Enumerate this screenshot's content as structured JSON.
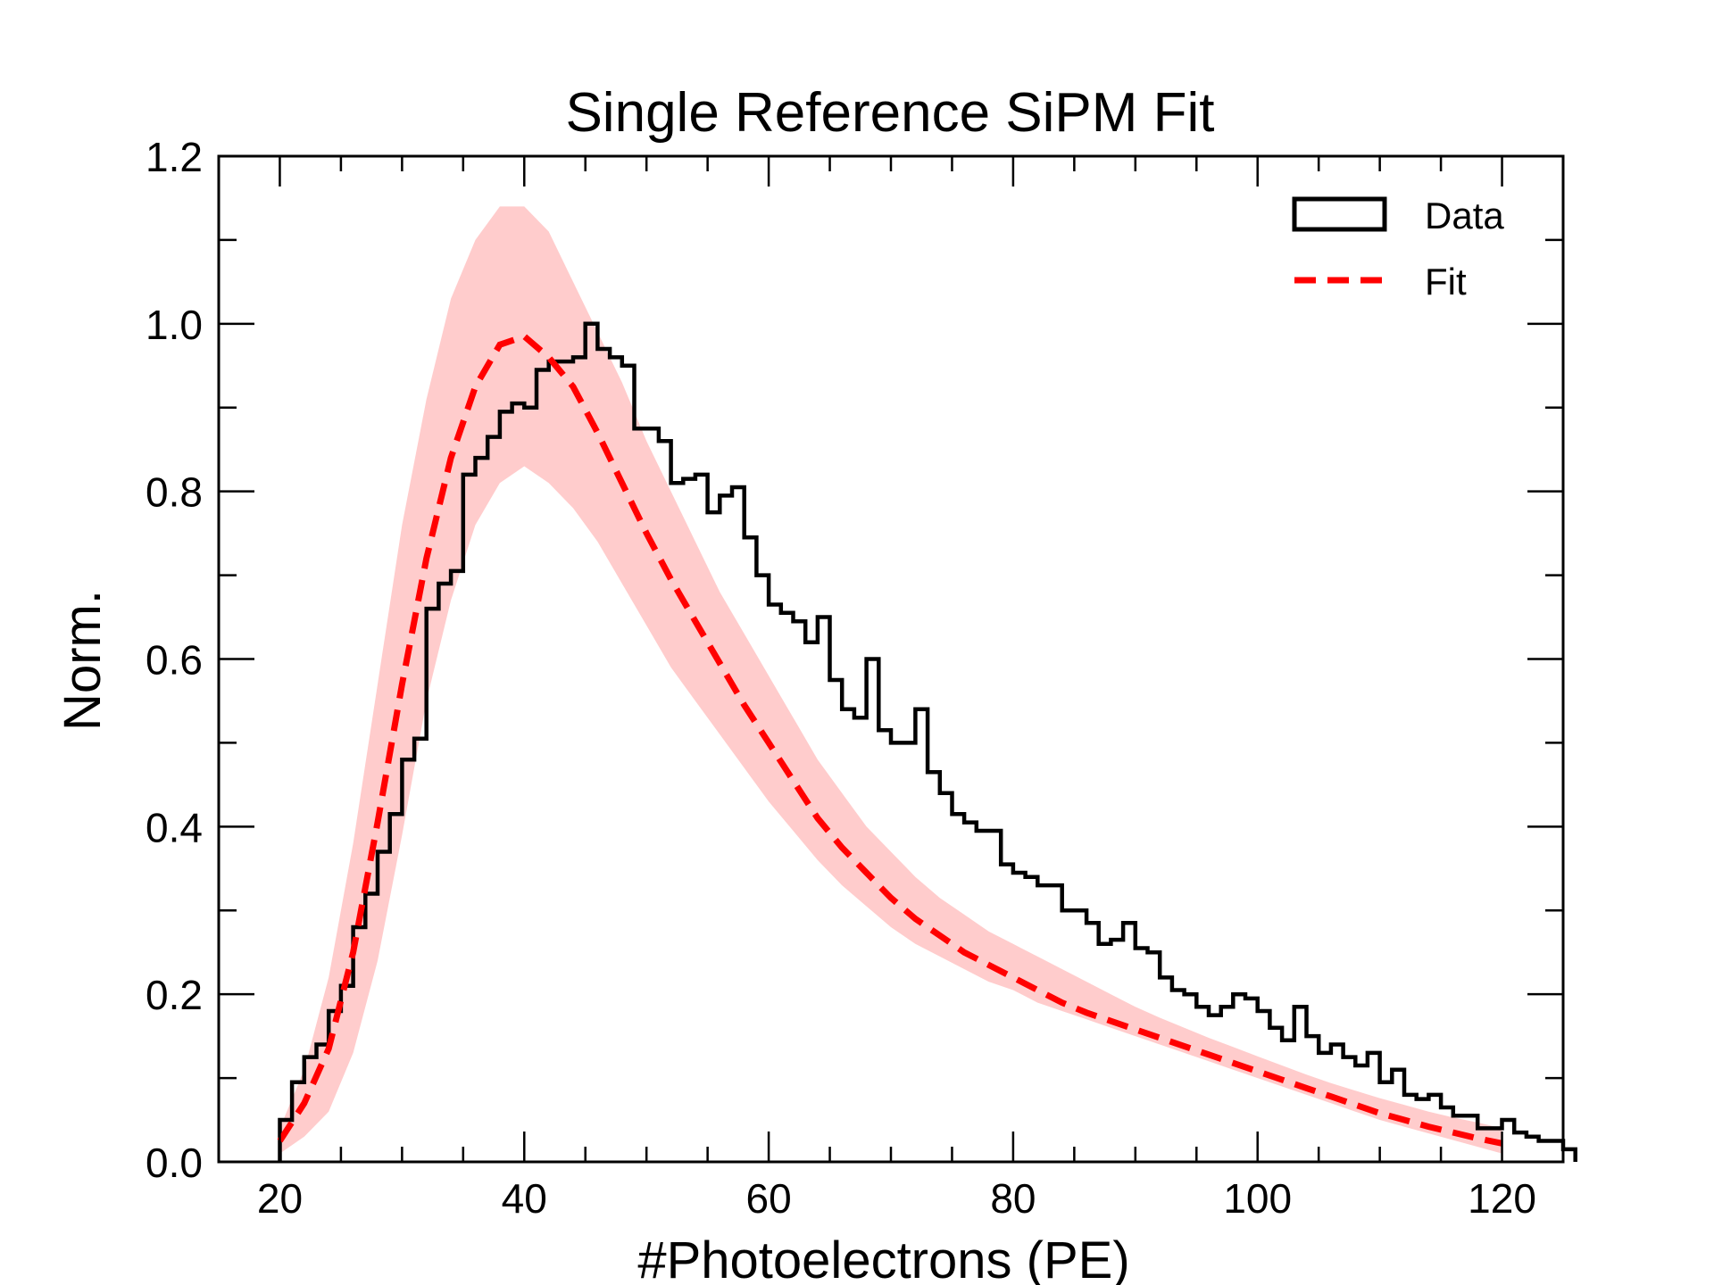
{
  "chart_data": {
    "type": "histogram_with_fit",
    "title": "Single Reference SiPM Fit",
    "xlabel": "#Photoelectrons (PE)",
    "ylabel": "Norm.",
    "xlim": [
      15,
      125
    ],
    "ylim": [
      0,
      1.2
    ],
    "xticks": [
      20,
      40,
      60,
      80,
      100,
      120
    ],
    "xtick_labels": [
      "20",
      "40",
      "60",
      "80",
      "100",
      "120"
    ],
    "yticks": [
      0.0,
      0.2,
      0.4,
      0.6,
      0.8,
      1.0,
      1.2
    ],
    "ytick_labels": [
      "0.0",
      "0.2",
      "0.4",
      "0.6",
      "0.8",
      "1.0",
      "1.2"
    ],
    "x_minor_step": 5,
    "y_minor_step": 0.1,
    "legend": {
      "location": "top-right",
      "entries": [
        {
          "label": "Data",
          "style": "step-outline"
        },
        {
          "label": "Fit",
          "style": "dashed-line"
        }
      ]
    },
    "colors": {
      "data": "#000000",
      "fit": "#ff0000",
      "band": "#ffcccc",
      "axes": "#000000"
    },
    "series": [
      {
        "name": "Data",
        "kind": "step",
        "bin_start": 20,
        "bin_width": 1,
        "values": [
          0.05,
          0.095,
          0.125,
          0.14,
          0.18,
          0.21,
          0.28,
          0.32,
          0.37,
          0.415,
          0.48,
          0.505,
          0.66,
          0.69,
          0.705,
          0.82,
          0.84,
          0.865,
          0.895,
          0.905,
          0.9,
          0.945,
          0.955,
          0.955,
          0.96,
          1.0,
          0.97,
          0.96,
          0.95,
          0.875,
          0.875,
          0.86,
          0.81,
          0.815,
          0.82,
          0.775,
          0.795,
          0.805,
          0.745,
          0.7,
          0.665,
          0.655,
          0.645,
          0.62,
          0.65,
          0.575,
          0.54,
          0.53,
          0.6,
          0.515,
          0.5,
          0.5,
          0.54,
          0.465,
          0.44,
          0.415,
          0.405,
          0.395,
          0.395,
          0.355,
          0.345,
          0.34,
          0.33,
          0.33,
          0.3,
          0.3,
          0.285,
          0.26,
          0.265,
          0.285,
          0.255,
          0.25,
          0.22,
          0.205,
          0.2,
          0.185,
          0.175,
          0.185,
          0.2,
          0.195,
          0.18,
          0.16,
          0.145,
          0.185,
          0.15,
          0.13,
          0.14,
          0.125,
          0.115,
          0.13,
          0.095,
          0.11,
          0.08,
          0.075,
          0.08,
          0.065,
          0.055,
          0.055,
          0.04,
          0.04,
          0.05,
          0.035,
          0.03,
          0.025,
          0.025,
          0.015
        ]
      },
      {
        "name": "Fit",
        "kind": "line",
        "x": [
          20,
          22,
          24,
          26,
          28,
          30,
          32,
          34,
          36,
          38,
          40,
          42,
          44,
          46,
          48,
          50,
          52,
          54,
          56,
          58,
          60,
          62,
          64,
          66,
          68,
          70,
          72,
          74,
          76,
          78,
          80,
          82,
          84,
          86,
          88,
          90,
          92,
          94,
          96,
          98,
          100,
          102,
          104,
          106,
          108,
          110,
          112,
          114,
          116,
          118,
          120
        ],
        "y": [
          0.025,
          0.07,
          0.135,
          0.25,
          0.405,
          0.57,
          0.72,
          0.84,
          0.925,
          0.975,
          0.985,
          0.96,
          0.925,
          0.87,
          0.81,
          0.75,
          0.695,
          0.645,
          0.595,
          0.545,
          0.5,
          0.455,
          0.41,
          0.375,
          0.345,
          0.315,
          0.29,
          0.27,
          0.25,
          0.235,
          0.22,
          0.205,
          0.19,
          0.178,
          0.168,
          0.158,
          0.148,
          0.138,
          0.128,
          0.118,
          0.108,
          0.098,
          0.088,
          0.078,
          0.068,
          0.058,
          0.05,
          0.042,
          0.035,
          0.028,
          0.022
        ]
      },
      {
        "name": "Fit uncertainty band",
        "kind": "band",
        "x": [
          20,
          22,
          24,
          26,
          28,
          30,
          32,
          34,
          36,
          38,
          40,
          42,
          44,
          46,
          48,
          50,
          52,
          54,
          56,
          58,
          60,
          62,
          64,
          66,
          68,
          70,
          72,
          74,
          76,
          78,
          80,
          82,
          84,
          86,
          88,
          90,
          92,
          94,
          96,
          98,
          100,
          102,
          104,
          106,
          108,
          110,
          112,
          114,
          116,
          118,
          120
        ],
        "upper": [
          0.04,
          0.11,
          0.22,
          0.38,
          0.57,
          0.76,
          0.91,
          1.03,
          1.1,
          1.14,
          1.14,
          1.11,
          1.05,
          0.99,
          0.93,
          0.86,
          0.8,
          0.74,
          0.68,
          0.63,
          0.58,
          0.53,
          0.48,
          0.44,
          0.4,
          0.37,
          0.34,
          0.315,
          0.295,
          0.275,
          0.26,
          0.245,
          0.23,
          0.215,
          0.2,
          0.185,
          0.172,
          0.16,
          0.148,
          0.137,
          0.126,
          0.115,
          0.104,
          0.094,
          0.085,
          0.076,
          0.068,
          0.06,
          0.053,
          0.047,
          0.04
        ],
        "lower": [
          0.01,
          0.03,
          0.06,
          0.13,
          0.24,
          0.39,
          0.55,
          0.67,
          0.76,
          0.81,
          0.83,
          0.81,
          0.78,
          0.74,
          0.69,
          0.64,
          0.59,
          0.55,
          0.51,
          0.47,
          0.43,
          0.395,
          0.36,
          0.33,
          0.305,
          0.28,
          0.26,
          0.245,
          0.23,
          0.215,
          0.205,
          0.19,
          0.18,
          0.17,
          0.16,
          0.15,
          0.14,
          0.13,
          0.12,
          0.11,
          0.1,
          0.09,
          0.08,
          0.07,
          0.06,
          0.05,
          0.042,
          0.034,
          0.026,
          0.018,
          0.01
        ]
      }
    ]
  }
}
